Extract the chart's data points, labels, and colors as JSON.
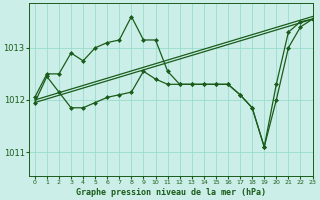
{
  "title": "Graphe pression niveau de la mer (hPa)",
  "bg_color": "#cceee8",
  "grid_color": "#99ddcc",
  "line_color": "#1a5c1a",
  "marker_color": "#1a5c1a",
  "ylim": [
    1010.55,
    1013.85
  ],
  "xlim": [
    -0.5,
    23
  ],
  "yticks": [
    1011,
    1012,
    1013
  ],
  "xticks": [
    0,
    1,
    2,
    3,
    4,
    5,
    6,
    7,
    8,
    9,
    10,
    11,
    12,
    13,
    14,
    15,
    16,
    17,
    18,
    19,
    20,
    21,
    22,
    23
  ],
  "series": [
    {
      "x": [
        0,
        1,
        2,
        3,
        4,
        5,
        6,
        7,
        8,
        9,
        10,
        11,
        12,
        13,
        14,
        15,
        16,
        17,
        18,
        19,
        20,
        21,
        22,
        23
      ],
      "y": [
        1012.05,
        1012.5,
        1012.5,
        1012.9,
        1012.75,
        1013.0,
        1013.1,
        1013.15,
        1013.6,
        1013.15,
        1013.15,
        1012.55,
        1012.3,
        1012.3,
        1012.3,
        1012.3,
        1012.3,
        1012.1,
        1011.85,
        1011.1,
        1012.3,
        1013.3,
        1013.5,
        1013.55
      ],
      "style": "-",
      "marker": "D",
      "markersize": 2.0,
      "linewidth": 0.9
    },
    {
      "x": [
        0,
        1,
        2,
        3,
        4,
        5,
        6,
        7,
        8,
        9,
        10,
        11,
        12,
        13,
        14,
        15,
        16,
        17,
        18,
        19,
        20,
        21,
        22,
        23
      ],
      "y": [
        1011.95,
        1012.45,
        1012.15,
        1011.85,
        1011.85,
        1011.95,
        1012.05,
        1012.1,
        1012.15,
        1012.55,
        1012.4,
        1012.3,
        1012.3,
        1012.3,
        1012.3,
        1012.3,
        1012.3,
        1012.1,
        1011.85,
        1011.1,
        1012.0,
        1013.0,
        1013.4,
        1013.55
      ],
      "style": "-",
      "marker": "D",
      "markersize": 2.0,
      "linewidth": 0.9
    },
    {
      "x": [
        0,
        23
      ],
      "y": [
        1011.95,
        1013.55
      ],
      "style": "-",
      "marker": null,
      "markersize": 0,
      "linewidth": 0.9
    },
    {
      "x": [
        0,
        23
      ],
      "y": [
        1012.0,
        1013.6
      ],
      "style": "-",
      "marker": null,
      "markersize": 0,
      "linewidth": 0.9
    }
  ]
}
